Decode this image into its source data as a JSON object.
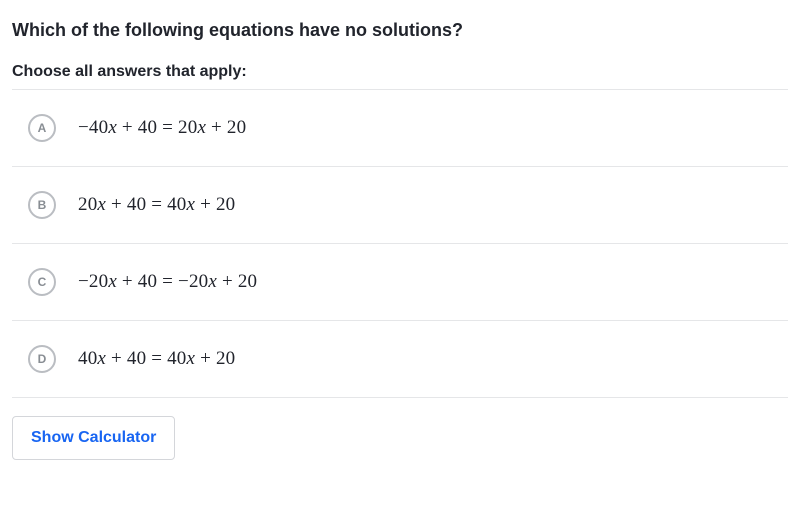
{
  "question": "Which of the following equations have no solutions?",
  "instruction": "Choose all answers that apply:",
  "options": [
    {
      "letter": "A",
      "lhs_coef": "−40",
      "lhs_const": "40",
      "rhs_coef": "20",
      "rhs_const": "20"
    },
    {
      "letter": "B",
      "lhs_coef": "20",
      "lhs_const": "40",
      "rhs_coef": "40",
      "rhs_const": "20"
    },
    {
      "letter": "C",
      "lhs_coef": "−20",
      "lhs_const": "40",
      "rhs_coef": "−20",
      "rhs_const": "20"
    },
    {
      "letter": "D",
      "lhs_coef": "40",
      "lhs_const": "40",
      "rhs_coef": "40",
      "rhs_const": "20"
    }
  ],
  "calculator_label": "Show Calculator",
  "colors": {
    "text": "#21242c",
    "muted": "#888d93",
    "border": "#e5e6e8",
    "circle_border": "#babdc2",
    "link": "#1865f2",
    "background": "#ffffff"
  },
  "typography": {
    "title_fontsize": 18,
    "instruction_fontsize": 16,
    "option_letter_fontsize": 12,
    "equation_fontsize": 19,
    "button_fontsize": 16
  }
}
